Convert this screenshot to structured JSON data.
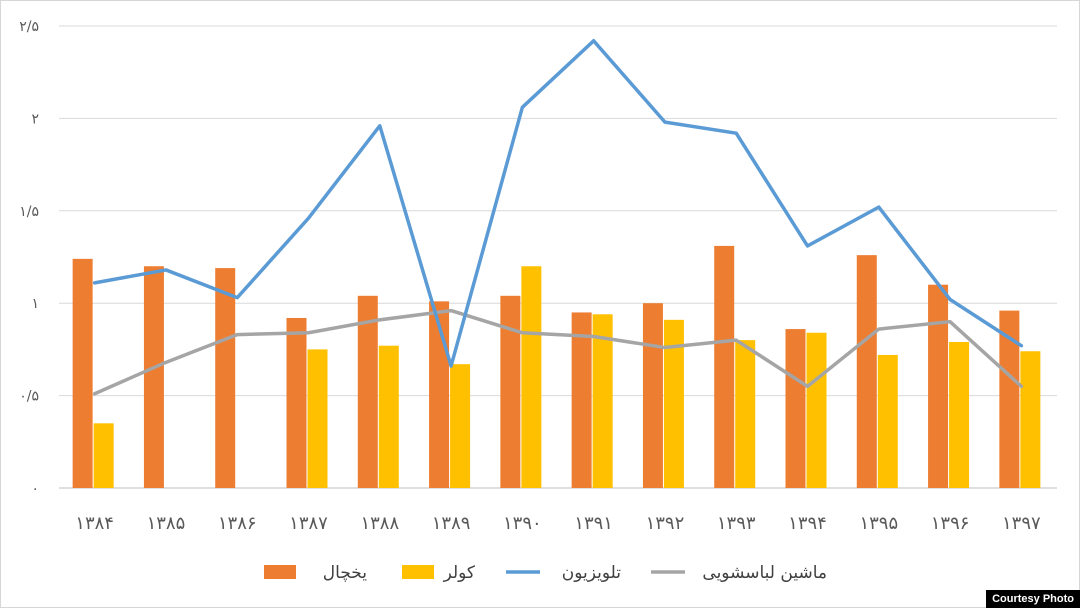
{
  "chart_data": {
    "type": "bar",
    "categories": [
      "۱۳۸۴",
      "۱۳۸۵",
      "۱۳۸۶",
      "۱۳۸۷",
      "۱۳۸۸",
      "۱۳۸۹",
      "۱۳۹۰",
      "۱۳۹۱",
      "۱۳۹۲",
      "۱۳۹۳",
      "۱۳۹۴",
      "۱۳۹۵",
      "۱۳۹۶",
      "۱۳۹۷"
    ],
    "y_ticks": [
      {
        "value": 0,
        "label": "۰"
      },
      {
        "value": 0.5,
        "label": "۰/۵"
      },
      {
        "value": 1,
        "label": "۱"
      },
      {
        "value": 1.5,
        "label": "۱/۵"
      },
      {
        "value": 2,
        "label": "۲"
      },
      {
        "value": 2.5,
        "label": "۲/۵"
      }
    ],
    "ylim": [
      0,
      2.5
    ],
    "grid": true,
    "legend_position": "bottom",
    "bar_series": [
      {
        "name": "یخچال",
        "color": "#ED7D31",
        "values": [
          1.24,
          1.2,
          1.19,
          0.92,
          1.04,
          1.01,
          1.04,
          0.95,
          1.0,
          1.31,
          0.86,
          1.26,
          1.1,
          0.96
        ]
      },
      {
        "name": "کولر",
        "color": "#FFC000",
        "values": [
          0.35,
          null,
          null,
          0.75,
          0.77,
          0.67,
          1.2,
          0.94,
          0.91,
          0.8,
          0.84,
          0.72,
          0.79,
          0.74
        ]
      }
    ],
    "line_series": [
      {
        "name": "تلویزیون",
        "color": "#5B9BD5",
        "values": [
          1.11,
          1.18,
          1.03,
          1.46,
          1.96,
          0.66,
          2.06,
          2.42,
          1.98,
          1.92,
          1.31,
          1.52,
          1.02,
          0.77
        ]
      },
      {
        "name": "ماشین لباسشویی",
        "color": "#A5A5A5",
        "values": [
          0.51,
          0.68,
          0.83,
          0.84,
          0.91,
          0.96,
          0.84,
          0.82,
          0.76,
          0.8,
          0.55,
          0.86,
          0.9,
          0.55
        ]
      }
    ]
  },
  "credit": "Courtesy Photo"
}
